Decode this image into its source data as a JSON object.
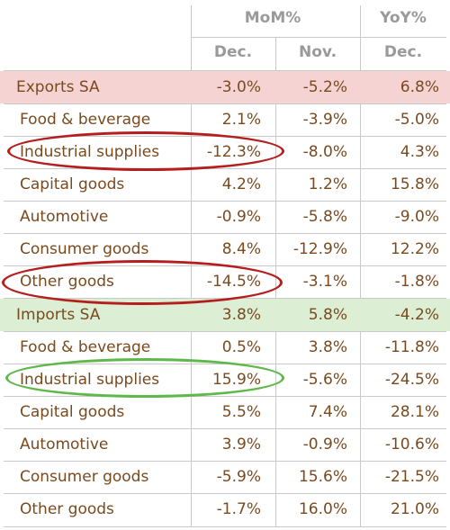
{
  "header": {
    "group_mom": "MoM%",
    "group_yoy": "YoY%",
    "col_dec_mom": "Dec.",
    "col_nov_mom": "Nov.",
    "col_dec_yoy": "Dec."
  },
  "rows": [
    {
      "label": "Exports SA",
      "dec": "-3.0%",
      "nov": "-5.2%",
      "yoy": "6.8%"
    },
    {
      "label": "Food & beverage",
      "dec": "2.1%",
      "nov": "-3.9%",
      "yoy": "-5.0%"
    },
    {
      "label": "Industrial supplies",
      "dec": "-12.3%",
      "nov": "-8.0%",
      "yoy": "4.3%"
    },
    {
      "label": "Capital goods",
      "dec": "4.2%",
      "nov": "1.2%",
      "yoy": "15.8%"
    },
    {
      "label": "Automotive",
      "dec": "-0.9%",
      "nov": "-5.8%",
      "yoy": "-9.0%"
    },
    {
      "label": "Consumer goods",
      "dec": "8.4%",
      "nov": "-12.9%",
      "yoy": "12.2%"
    },
    {
      "label": "Other goods",
      "dec": "-14.5%",
      "nov": "-3.1%",
      "yoy": "-1.8%"
    },
    {
      "label": "Imports SA",
      "dec": "3.8%",
      "nov": "5.8%",
      "yoy": "-4.2%"
    },
    {
      "label": "Food & beverage",
      "dec": "0.5%",
      "nov": "3.8%",
      "yoy": "-11.8%"
    },
    {
      "label": "Industrial supplies",
      "dec": "15.9%",
      "nov": "-5.6%",
      "yoy": "-24.5%"
    },
    {
      "label": "Capital goods",
      "dec": "5.5%",
      "nov": "7.4%",
      "yoy": "28.1%"
    },
    {
      "label": "Automotive",
      "dec": "3.9%",
      "nov": "-0.9%",
      "yoy": "-10.6%"
    },
    {
      "label": "Consumer goods",
      "dec": "-5.9%",
      "nov": "15.6%",
      "yoy": "-21.5%"
    },
    {
      "label": "Other goods",
      "dec": "-1.7%",
      "nov": "16.0%",
      "yoy": "21.0%"
    }
  ],
  "colors": {
    "text": "#7a4a1e",
    "header_text": "#9a9a9a",
    "export_highlight": "#f6d3d3",
    "import_highlight": "#dcefd4",
    "circle_red": "#b51e1e",
    "circle_green": "#5fb84a"
  }
}
